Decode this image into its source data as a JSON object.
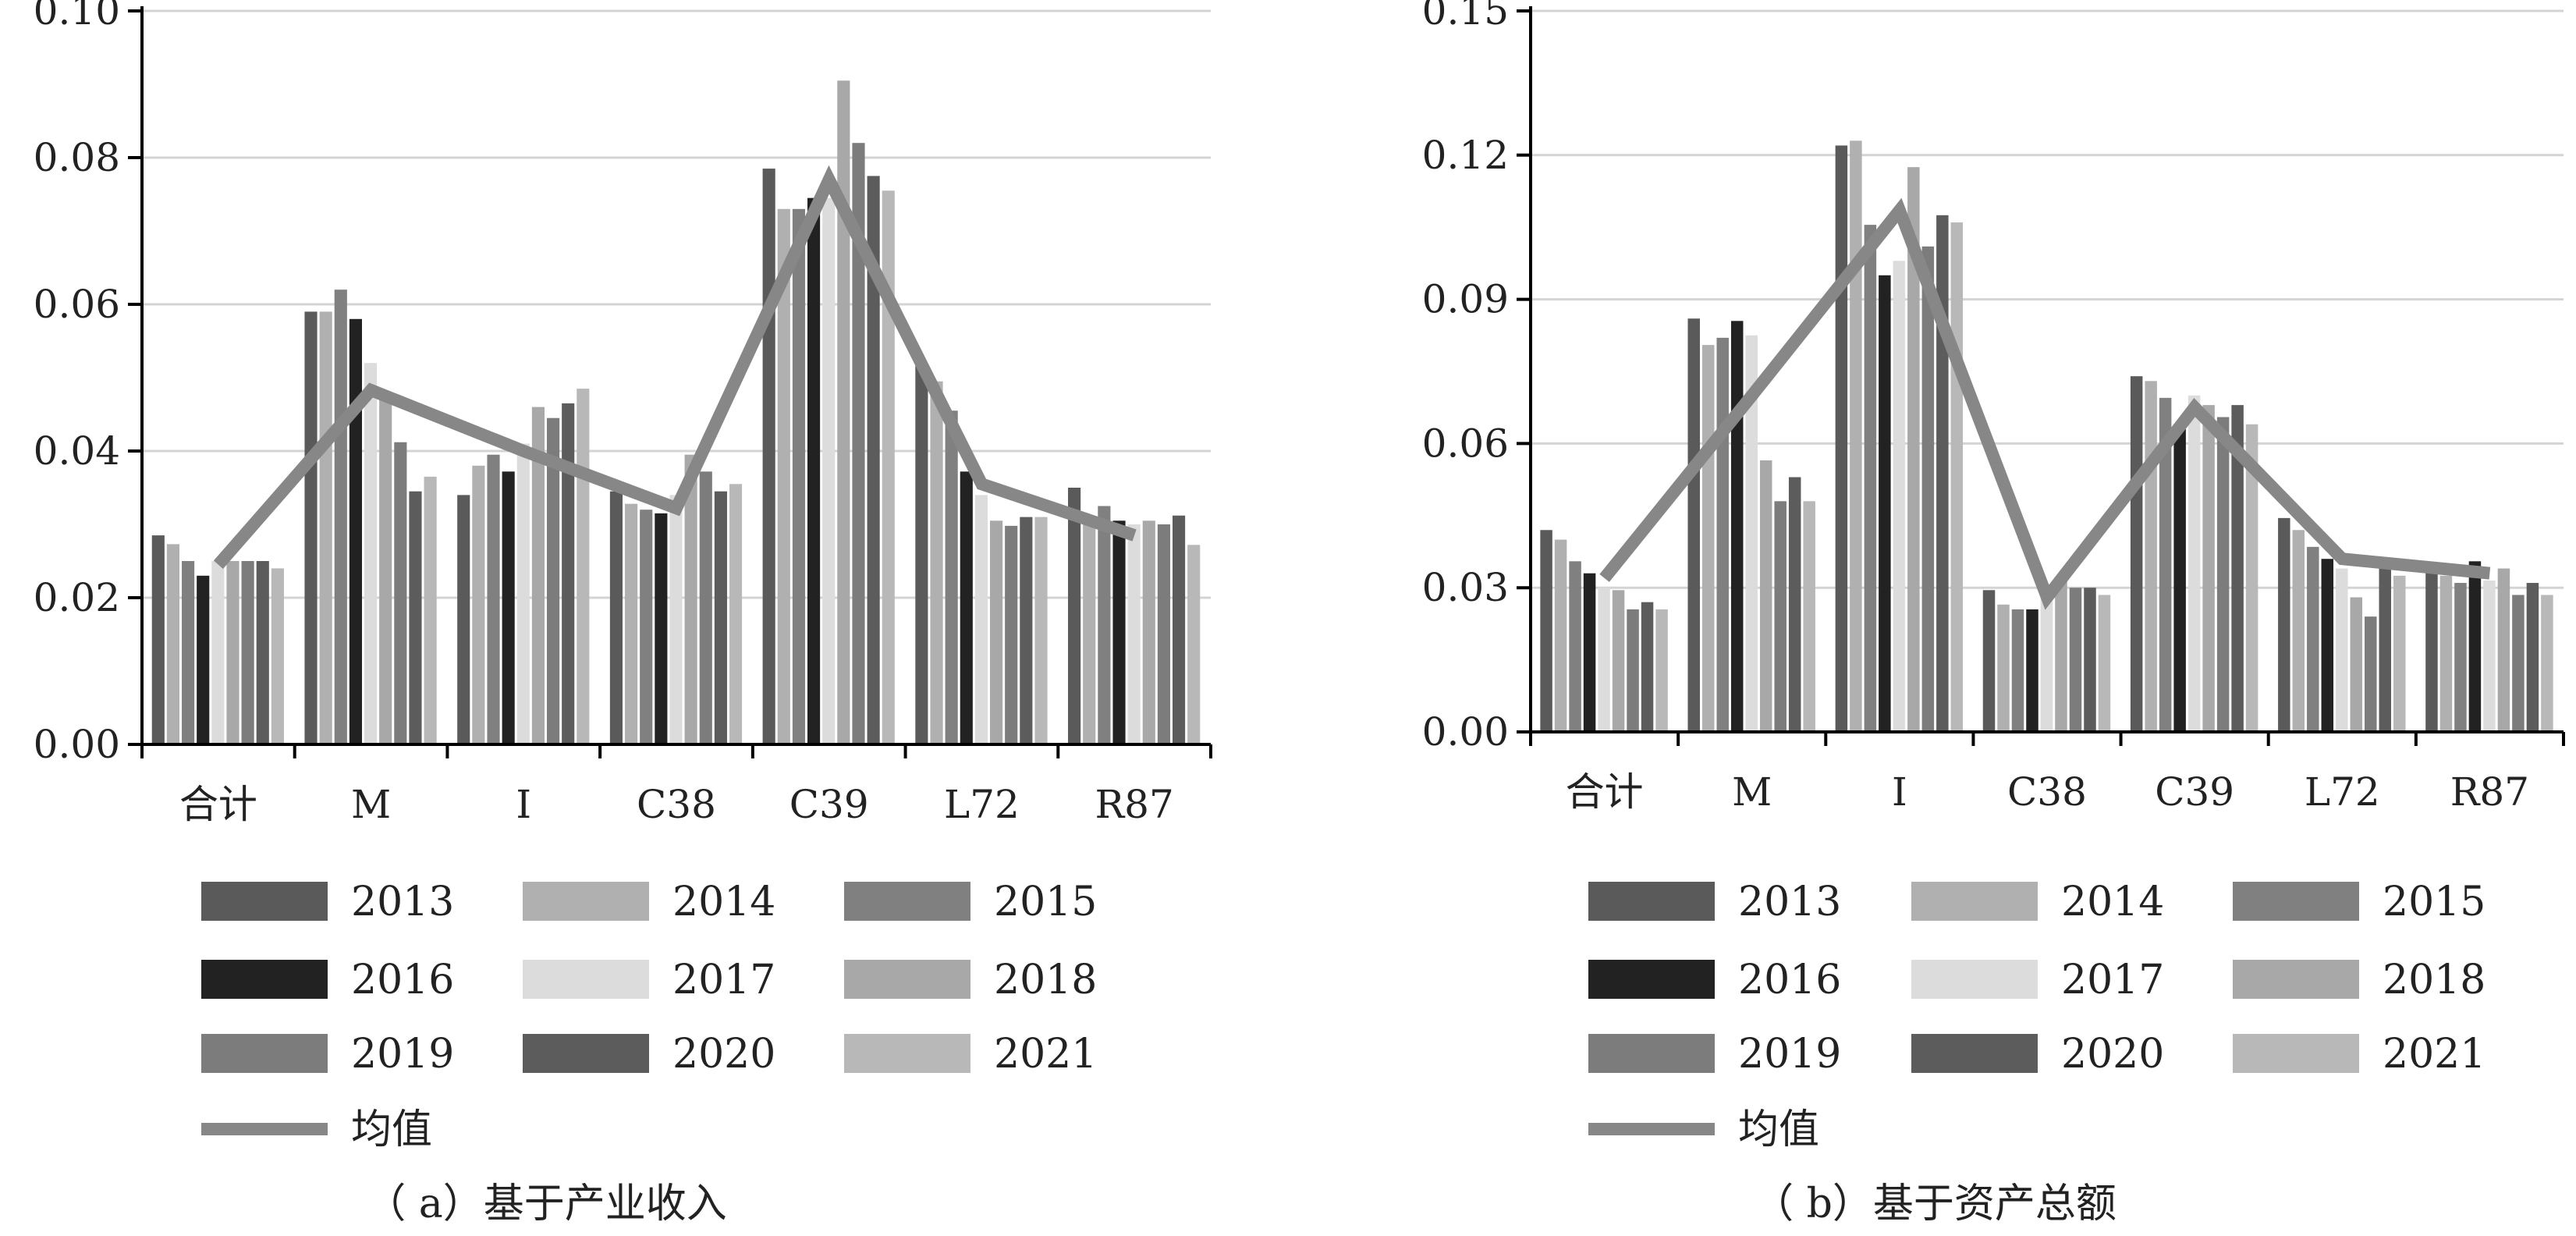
{
  "colors": {
    "2013": "#5a5a5a",
    "2014": "#b0b0b0",
    "2015": "#808080",
    "2016": "#222222",
    "2017": "#dcdcdc",
    "2018": "#a8a8a8",
    "2019": "#7c7c7c",
    "2020": "#5c5c5c",
    "2021": "#b8b8b8",
    "mean": "#878787",
    "axis": "#000000",
    "grid": "#d4d4d4"
  },
  "chart_data": [
    {
      "type": "bar",
      "caption": "（ a）基于产业收入",
      "categories": [
        "合计",
        "M",
        "I",
        "C38",
        "C39",
        "L72",
        "R87"
      ],
      "ylim": [
        0,
        0.1
      ],
      "yticks": [
        "0.00",
        "0.02",
        "0.04",
        "0.06",
        "0.08",
        "0.10"
      ],
      "ytick_values": [
        0,
        0.02,
        0.04,
        0.06,
        0.08,
        0.1
      ],
      "grid": true,
      "series": [
        {
          "name": "2013",
          "values": [
            0.0285,
            0.059,
            0.034,
            0.0345,
            0.0785,
            0.052,
            0.035
          ]
        },
        {
          "name": "2014",
          "values": [
            0.0273,
            0.059,
            0.038,
            0.0328,
            0.073,
            0.0495,
            0.031
          ]
        },
        {
          "name": "2015",
          "values": [
            0.025,
            0.062,
            0.0395,
            0.032,
            0.073,
            0.0455,
            0.0325
          ]
        },
        {
          "name": "2016",
          "values": [
            0.023,
            0.058,
            0.0372,
            0.0315,
            0.0745,
            0.0372,
            0.0305
          ]
        },
        {
          "name": "2017",
          "values": [
            0.025,
            0.052,
            0.041,
            0.034,
            0.0745,
            0.034,
            0.03
          ]
        },
        {
          "name": "2018",
          "values": [
            0.025,
            0.0475,
            0.046,
            0.0395,
            0.0905,
            0.0305,
            0.0305
          ]
        },
        {
          "name": "2019",
          "values": [
            0.025,
            0.0412,
            0.0445,
            0.0372,
            0.082,
            0.0298,
            0.03
          ]
        },
        {
          "name": "2020",
          "values": [
            0.025,
            0.0345,
            0.0465,
            0.0345,
            0.0775,
            0.031,
            0.0312
          ]
        },
        {
          "name": "2021",
          "values": [
            0.024,
            0.0365,
            0.0485,
            0.0355,
            0.0755,
            0.031,
            0.0272
          ]
        }
      ],
      "mean": {
        "name": "均值",
        "values": [
          0.0245,
          0.0483,
          0.04,
          0.0322,
          0.077,
          0.0355,
          0.0285
        ]
      }
    },
    {
      "type": "bar",
      "caption": "（ b）基于资产总额",
      "categories": [
        "合计",
        "M",
        "I",
        "C38",
        "C39",
        "L72",
        "R87"
      ],
      "ylim": [
        0,
        0.15
      ],
      "yticks": [
        "0.00",
        "0.03",
        "0.06",
        "0.09",
        "0.12",
        "0.15"
      ],
      "ytick_values": [
        0,
        0.03,
        0.06,
        0.09,
        0.12,
        0.15
      ],
      "grid": true,
      "series": [
        {
          "name": "2013",
          "values": [
            0.042,
            0.086,
            0.122,
            0.0295,
            0.074,
            0.0445,
            0.034
          ]
        },
        {
          "name": "2014",
          "values": [
            0.04,
            0.0805,
            0.123,
            0.0265,
            0.073,
            0.042,
            0.0325
          ]
        },
        {
          "name": "2015",
          "values": [
            0.0355,
            0.082,
            0.1055,
            0.0255,
            0.0695,
            0.0385,
            0.031
          ]
        },
        {
          "name": "2016",
          "values": [
            0.033,
            0.0855,
            0.095,
            0.0255,
            0.063,
            0.036,
            0.0355
          ]
        },
        {
          "name": "2017",
          "values": [
            0.03,
            0.0825,
            0.098,
            0.028,
            0.07,
            0.034,
            0.0315
          ]
        },
        {
          "name": "2018",
          "values": [
            0.0295,
            0.0565,
            0.1175,
            0.0315,
            0.068,
            0.028,
            0.034
          ]
        },
        {
          "name": "2019",
          "values": [
            0.0255,
            0.048,
            0.101,
            0.03,
            0.0655,
            0.024,
            0.0285
          ]
        },
        {
          "name": "2020",
          "values": [
            0.027,
            0.053,
            0.1075,
            0.03,
            0.068,
            0.0345,
            0.031
          ]
        },
        {
          "name": "2021",
          "values": [
            0.0255,
            0.048,
            0.106,
            0.0285,
            0.064,
            0.0325,
            0.0285
          ]
        }
      ],
      "mean": {
        "name": "均值",
        "values": [
          0.032,
          0.07,
          0.1085,
          0.028,
          0.0675,
          0.036,
          0.033
        ]
      }
    }
  ]
}
